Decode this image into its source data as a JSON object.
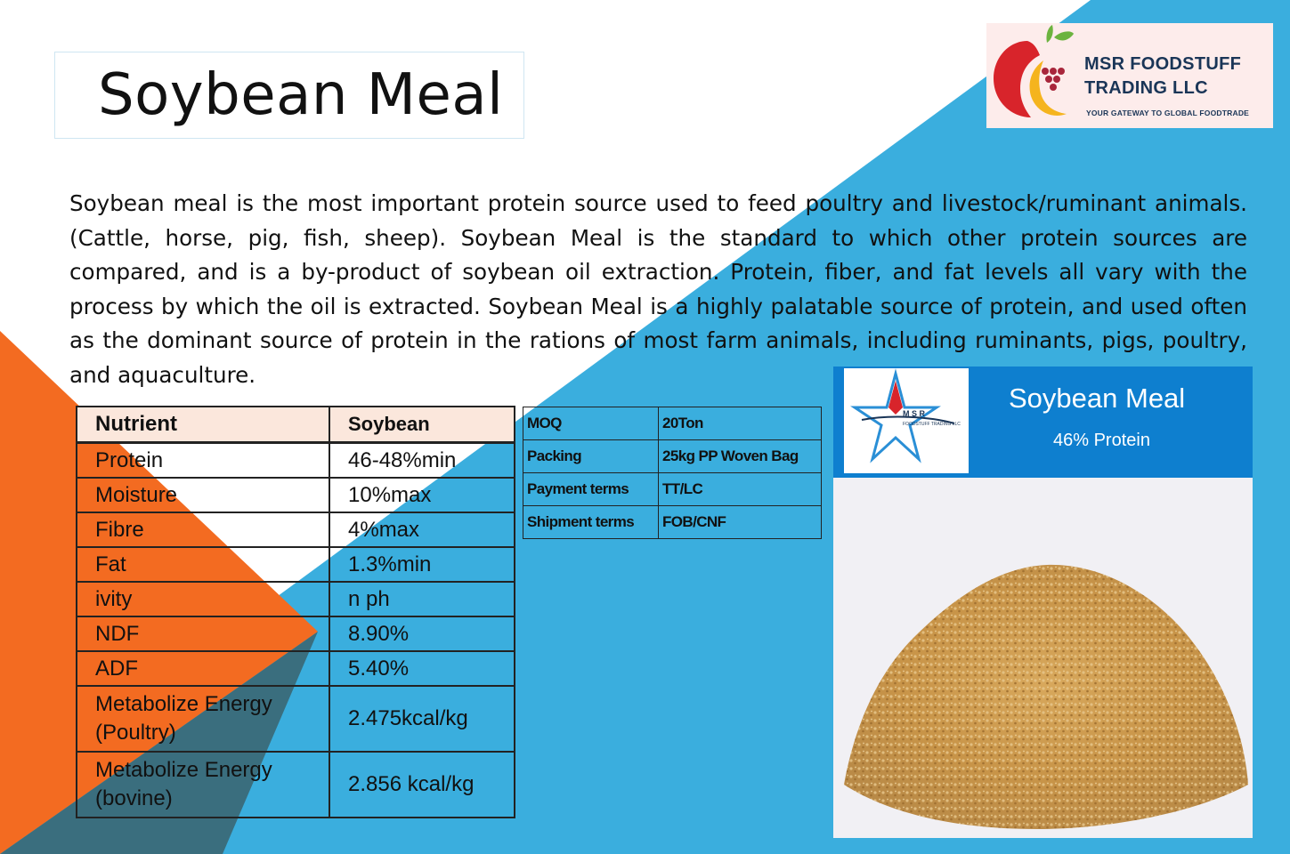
{
  "title": "Soybean Meal",
  "logo": {
    "name_line1": "MSR FOODSTUFF",
    "name_line2": "TRADING LLC",
    "tagline": "YOUR GATEWAY TO GLOBAL FOODTRADE"
  },
  "description": "Soybean meal is the most important protein source used to feed poultry and livestock/ruminant animals.(Cattle, horse, pig, fish, sheep). Soybean Meal is the standard to which other protein sources are compared, and is a by-product of soybean oil extraction. Protein, fiber, and fat levels all vary with the process by which the oil is extracted. Soybean Meal is a highly palatable source of protein, and used often as the dominant source of protein in the rations of most farm animals, including ruminants, pigs, poultry, and aquaculture.",
  "nutrient_table": {
    "headers": [
      "Nutrient",
      "Soybean"
    ],
    "rows": [
      {
        "nutrient": "Protein",
        "value": "46-48%min"
      },
      {
        "nutrient": "Moisture",
        "value": "10%max"
      },
      {
        "nutrient": "Fibre",
        "value": "4%max"
      },
      {
        "nutrient": "Fat",
        "value": "1.3%min"
      },
      {
        "nutrient": "ivity",
        "value": "n ph"
      },
      {
        "nutrient": "NDF",
        "value": "8.90%"
      },
      {
        "nutrient": "ADF",
        "value": "5.40%"
      },
      {
        "nutrient_line1": "Metabolize Energy",
        "nutrient_line2": "(Poultry)",
        "value": "2.475kcal/kg"
      },
      {
        "nutrient_line1": "Metabolize Energy",
        "nutrient_line2": "(bovine)",
        "value": "2.856 kcal/kg"
      }
    ]
  },
  "terms_table": {
    "rows": [
      {
        "label": "MOQ",
        "value": "20Ton"
      },
      {
        "label": "Packing",
        "value": "25kg PP Woven Bag"
      },
      {
        "label": "Payment terms",
        "value": "TT/LC"
      },
      {
        "label": "Shipment terms",
        "value": "FOB/CNF"
      }
    ]
  },
  "product_image": {
    "title": "Soybean Meal",
    "subtitle": "46% Protein",
    "badge_line1": "M S R",
    "badge_line2": "FOODSTUFF TRADING LLC"
  },
  "colors": {
    "orange": "#f36b21",
    "blue": "#3aaede",
    "navy": "#1a3557",
    "header_blue": "#0e7fcf",
    "table_header": "#fbe7dc"
  }
}
